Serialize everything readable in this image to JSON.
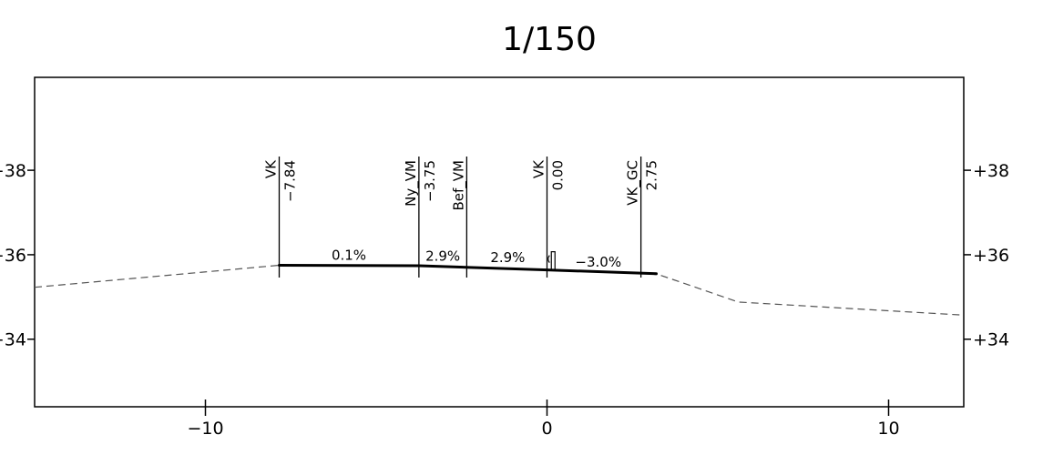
{
  "drawing": {
    "scale_label": "1/150"
  },
  "chart_data": {
    "type": "line",
    "title": "1/150",
    "xlim": [
      -15.0,
      12.2
    ],
    "ylim": [
      32.4,
      40.2
    ],
    "x_ticks": [
      {
        "value": -10,
        "label": "−10"
      },
      {
        "value": 0,
        "label": "0"
      },
      {
        "value": 10,
        "label": "10"
      }
    ],
    "y_ticks_left": [
      {
        "value": 38,
        "label": "+38"
      },
      {
        "value": 36,
        "label": "+36"
      },
      {
        "value": 34,
        "label": "+34"
      }
    ],
    "y_ticks_right": [
      {
        "value": 38,
        "label": "+38"
      },
      {
        "value": 36,
        "label": "+36"
      },
      {
        "value": 34,
        "label": "+34"
      }
    ],
    "series": [
      {
        "style": "dashed",
        "x": [
          -15.0,
          -7.84,
          -3.75,
          -2.3,
          0.0,
          2.75,
          3.3,
          5.6,
          12.2
        ],
        "y": [
          35.23,
          35.75,
          35.74,
          35.71,
          35.65,
          35.57,
          35.52,
          34.88,
          34.57
        ]
      },
      {
        "style": "solid",
        "x": [
          -7.84,
          -3.75,
          0.0,
          3.2
        ],
        "y": [
          35.75,
          35.74,
          35.64,
          35.55
        ]
      }
    ],
    "grade_labels": [
      {
        "text": "0.1%",
        "x": -5.8,
        "y": 35.88
      },
      {
        "text": "2.9%",
        "x": -3.05,
        "y": 35.86
      },
      {
        "text": "2.9%",
        "x": -1.15,
        "y": 35.83
      },
      {
        "text": "−3.0%",
        "x": 1.5,
        "y": 35.72
      }
    ],
    "offsets": [
      {
        "name": "VK",
        "offset": "−7.84",
        "x": -7.84
      },
      {
        "name": "Ny_VM",
        "offset": "−3.75",
        "x": -3.75
      },
      {
        "name": "Bef_VM",
        "offset": "",
        "x": -2.35
      },
      {
        "name": "VK",
        "offset": "0.00",
        "x": 0.0
      },
      {
        "name": "VK_GC",
        "offset": "2.75",
        "x": 2.75
      }
    ]
  }
}
